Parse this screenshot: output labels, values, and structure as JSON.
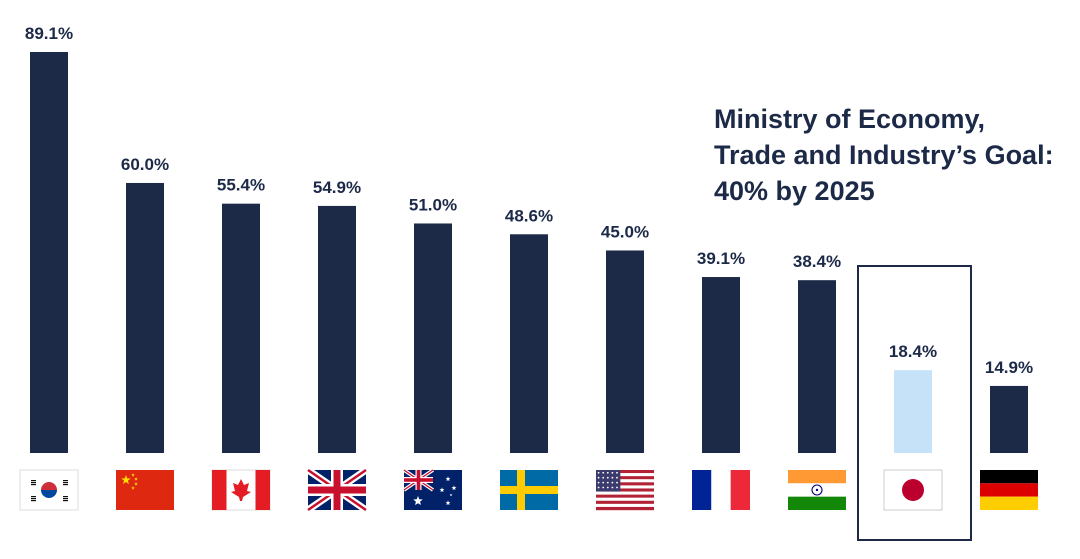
{
  "chart_data": {
    "type": "bar",
    "title": "",
    "xlabel": "",
    "ylabel": "",
    "ylim": [
      0,
      89.1
    ],
    "grid": false,
    "categories": [
      "South Korea",
      "China",
      "Canada",
      "United Kingdom",
      "Australia",
      "Sweden",
      "United States",
      "France",
      "India",
      "Japan",
      "Germany"
    ],
    "values": [
      89.1,
      60.0,
      55.4,
      54.9,
      51.0,
      48.6,
      45.0,
      39.1,
      38.4,
      18.4,
      14.9
    ],
    "value_labels": [
      "89.1%",
      "60.0%",
      "55.4%",
      "54.9%",
      "51.0%",
      "48.6%",
      "45.0%",
      "39.1%",
      "38.4%",
      "18.4%",
      "14.9%"
    ],
    "flag_icons": [
      "south-korea-flag-icon",
      "china-flag-icon",
      "canada-flag-icon",
      "uk-flag-icon",
      "australia-flag-icon",
      "sweden-flag-icon",
      "usa-flag-icon",
      "france-flag-icon",
      "india-flag-icon",
      "japan-flag-icon",
      "germany-flag-icon"
    ],
    "highlighted_category": "Japan",
    "annotation": {
      "lines": [
        "Ministry of Economy,",
        "Trade and Industry’s Goal:",
        "40% by 2025"
      ]
    }
  },
  "colors": {
    "bar": "#1c2a48",
    "highlight_bar": "#c6e2f8",
    "highlight_box": "#1c2a48",
    "text": "#1c2a48"
  }
}
